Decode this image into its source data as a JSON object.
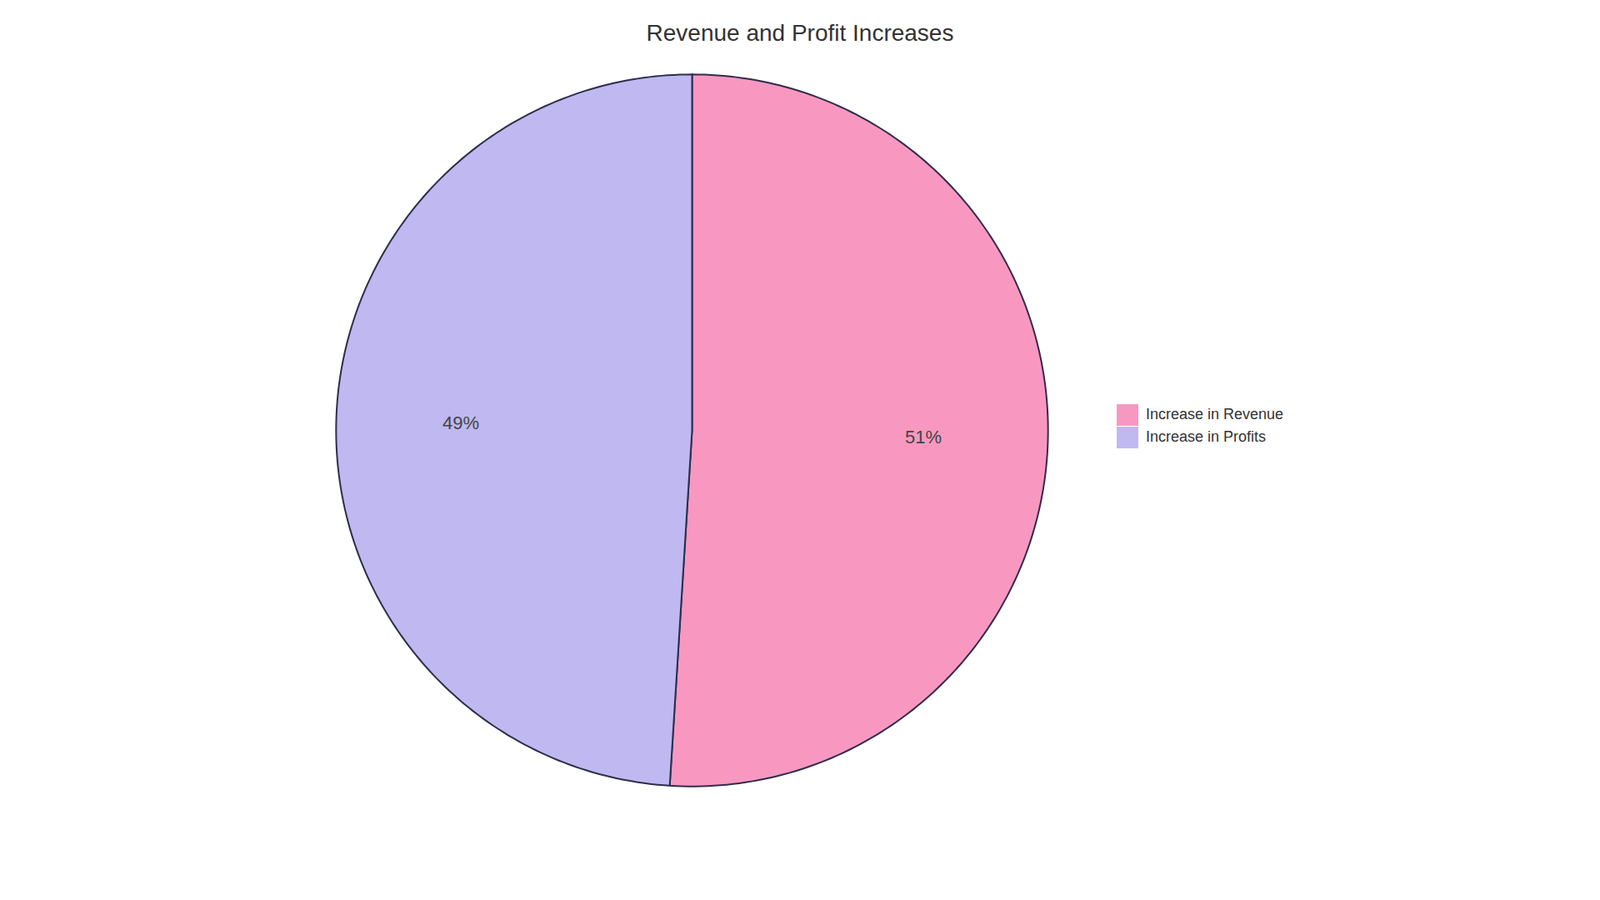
{
  "chart_data": {
    "type": "pie",
    "title": "Revenue and Profit Increases",
    "categories": [
      "Increase in Revenue",
      "Increase in Profits"
    ],
    "values": [
      51,
      49
    ],
    "value_labels": [
      "51%",
      "49%"
    ],
    "colors": [
      "#F898C0",
      "#C0B8F0"
    ],
    "data_labels": true,
    "legend": "right"
  }
}
